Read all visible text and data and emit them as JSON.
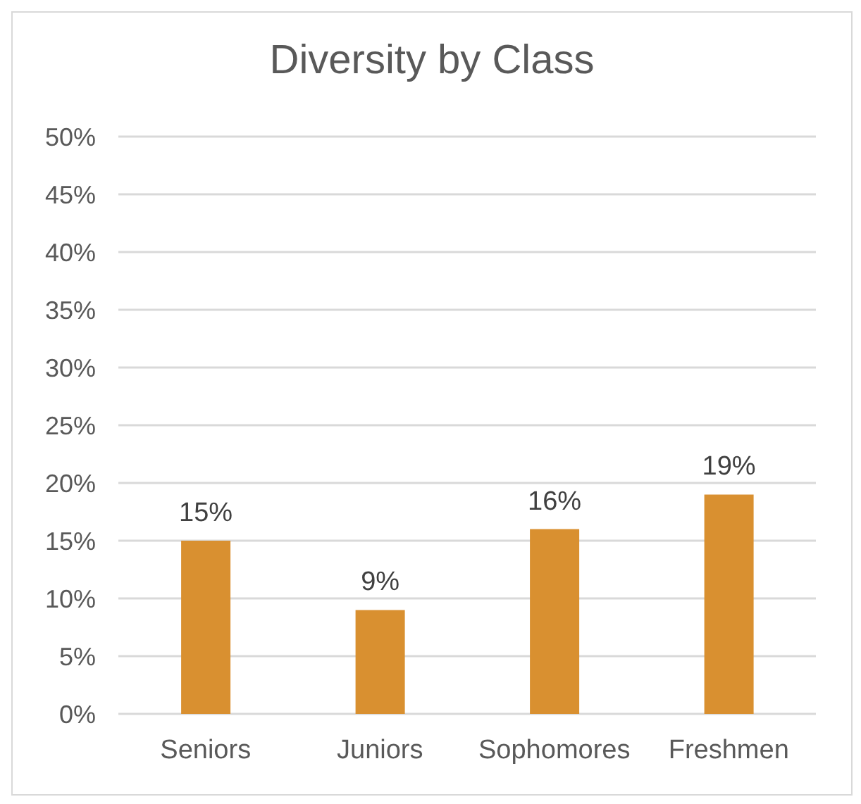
{
  "chart_data": {
    "type": "bar",
    "title": "Diversity by Class",
    "categories": [
      "Seniors",
      "Juniors",
      "Sophomores",
      "Freshmen"
    ],
    "values": [
      15,
      9,
      16,
      19
    ],
    "color": "#d99030",
    "value_labels": [
      "15%",
      "9%",
      "16%",
      "19%"
    ],
    "ylim": [
      0,
      50
    ],
    "yticks": [
      {
        "value": 0,
        "label": "0%"
      },
      {
        "value": 5,
        "label": "5%"
      },
      {
        "value": 10,
        "label": "10%"
      },
      {
        "value": 15,
        "label": "15%"
      },
      {
        "value": 20,
        "label": "20%"
      },
      {
        "value": 25,
        "label": "25%"
      },
      {
        "value": 30,
        "label": "30%"
      },
      {
        "value": 35,
        "label": "35%"
      },
      {
        "value": 40,
        "label": "40%"
      },
      {
        "value": 45,
        "label": "45%"
      },
      {
        "value": 50,
        "label": "50%"
      }
    ],
    "grid": "y"
  }
}
